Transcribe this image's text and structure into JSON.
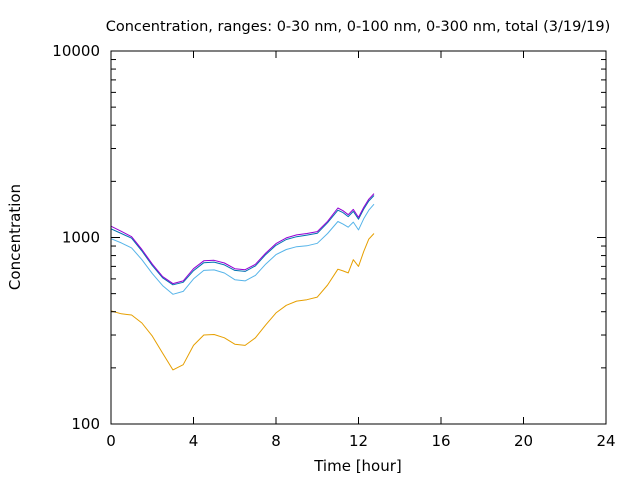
{
  "chart_data": {
    "type": "line",
    "title": "Concentration, ranges: 0-30 nm, 0-100 nm, 0-300 nm, total (3/19/19)",
    "xlabel": "Time [hour]",
    "ylabel": "Concentration",
    "xlim": [
      0,
      24
    ],
    "ylim": [
      100,
      10000
    ],
    "yscale": "log",
    "x_ticks": [
      0,
      4,
      8,
      12,
      16,
      20,
      24
    ],
    "x_tick_labels": [
      "0",
      "4",
      "8",
      "12",
      "16",
      "20",
      "24"
    ],
    "y_ticks": [
      100,
      1000,
      10000
    ],
    "y_tick_labels": [
      "100",
      "1000",
      "10000"
    ],
    "grid": false,
    "legend": "none",
    "x": [
      0,
      0.5,
      1,
      1.5,
      2,
      2.5,
      3,
      3.5,
      4,
      4.5,
      5,
      5.5,
      6,
      6.5,
      7,
      7.5,
      8,
      8.5,
      9,
      9.5,
      10,
      10.5,
      11,
      11.25,
      11.5,
      11.75,
      12,
      12.25,
      12.5,
      12.75
    ],
    "series": [
      {
        "color": "#e69f00",
        "values": [
          404,
          390,
          384,
          348,
          296,
          240,
          195,
          208,
          264,
          300,
          302,
          290,
          268,
          264,
          290,
          340,
          394,
          433,
          456,
          464,
          479,
          556,
          676,
          662,
          646,
          760,
          700,
          840,
          980,
          1050
        ]
      },
      {
        "color": "#56b4e9",
        "values": [
          985,
          935,
          880,
          760,
          640,
          552,
          496,
          514,
          600,
          666,
          670,
          645,
          594,
          585,
          626,
          720,
          810,
          862,
          893,
          903,
          931,
          1050,
          1218,
          1180,
          1135,
          1210,
          1098,
          1260,
          1400,
          1508
        ]
      },
      {
        "color": "#0072b2",
        "values": [
          1113,
          1051,
          992,
          846,
          707,
          608,
          558,
          575,
          664,
          733,
          738,
          713,
          666,
          658,
          704,
          810,
          908,
          976,
          1010,
          1030,
          1053,
          1200,
          1400,
          1360,
          1295,
          1380,
          1253,
          1420,
          1570,
          1680
        ]
      },
      {
        "color": "#9400d3",
        "values": [
          1150,
          1080,
          1010,
          862,
          720,
          617,
          566,
          585,
          680,
          750,
          755,
          730,
          680,
          672,
          718,
          825,
          928,
          995,
          1033,
          1051,
          1075,
          1222,
          1440,
          1392,
          1325,
          1415,
          1282,
          1450,
          1605,
          1720
        ]
      }
    ]
  }
}
